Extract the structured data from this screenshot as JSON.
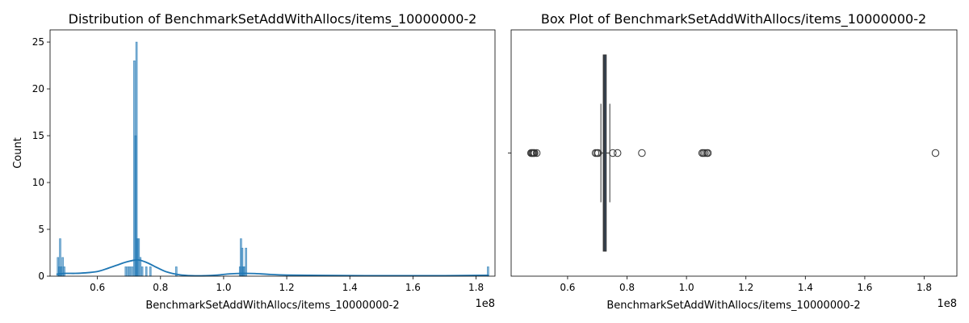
{
  "chart_data": [
    {
      "type": "bar",
      "subtype": "histogram-with-kde",
      "title": "Distribution of BenchmarkSetAddWithAllocs/items_10000000-2",
      "xlabel": "BenchmarkSetAddWithAllocs/items_10000000-2",
      "ylabel": "Count",
      "x_offset_label": "1e8",
      "xlim": [
        0.45,
        1.86
      ],
      "ylim": [
        0,
        26.3
      ],
      "x_ticks": [
        0.6,
        0.8,
        1.0,
        1.2,
        1.4,
        1.6,
        1.8
      ],
      "x_tick_labels": [
        "0.6",
        "0.8",
        "1.0",
        "1.2",
        "1.4",
        "1.6",
        "1.8"
      ],
      "y_ticks": [
        0,
        5,
        10,
        15,
        20,
        25
      ],
      "y_tick_labels": [
        "0",
        "5",
        "10",
        "15",
        "20",
        "25"
      ],
      "colors": {
        "bars": "#1f77b4",
        "kde": "#1f77b4"
      },
      "bins": [
        {
          "x": 0.475,
          "count": 2
        },
        {
          "x": 0.479,
          "count": 1
        },
        {
          "x": 0.482,
          "count": 4
        },
        {
          "x": 0.486,
          "count": 1
        },
        {
          "x": 0.49,
          "count": 2
        },
        {
          "x": 0.495,
          "count": 1
        },
        {
          "x": 0.69,
          "count": 1
        },
        {
          "x": 0.697,
          "count": 1
        },
        {
          "x": 0.703,
          "count": 1
        },
        {
          "x": 0.71,
          "count": 1
        },
        {
          "x": 0.717,
          "count": 23
        },
        {
          "x": 0.721,
          "count": 15
        },
        {
          "x": 0.724,
          "count": 25
        },
        {
          "x": 0.727,
          "count": 4
        },
        {
          "x": 0.731,
          "count": 4
        },
        {
          "x": 0.736,
          "count": 2
        },
        {
          "x": 0.742,
          "count": 1
        },
        {
          "x": 0.755,
          "count": 1
        },
        {
          "x": 0.768,
          "count": 1
        },
        {
          "x": 0.85,
          "count": 1
        },
        {
          "x": 1.052,
          "count": 1
        },
        {
          "x": 1.055,
          "count": 4
        },
        {
          "x": 1.059,
          "count": 3
        },
        {
          "x": 1.062,
          "count": 1
        },
        {
          "x": 1.066,
          "count": 1
        },
        {
          "x": 1.071,
          "count": 3
        },
        {
          "x": 1.838,
          "count": 1
        }
      ],
      "kde": {
        "x": [
          0.47,
          0.48,
          0.5,
          0.53,
          0.56,
          0.6,
          0.63,
          0.66,
          0.69,
          0.72,
          0.735,
          0.76,
          0.79,
          0.82,
          0.86,
          0.9,
          0.94,
          0.98,
          1.02,
          1.06,
          1.1,
          1.14,
          1.2,
          1.3,
          1.4,
          1.5,
          1.6,
          1.7,
          1.8,
          1.84
        ],
        "y": [
          0.2,
          0.25,
          0.3,
          0.3,
          0.35,
          0.5,
          0.8,
          1.15,
          1.5,
          1.72,
          1.7,
          1.4,
          0.9,
          0.45,
          0.15,
          0.05,
          0.05,
          0.12,
          0.25,
          0.3,
          0.28,
          0.2,
          0.12,
          0.08,
          0.06,
          0.05,
          0.05,
          0.05,
          0.08,
          0.1
        ]
      }
    },
    {
      "type": "box",
      "title": "Box Plot of BenchmarkSetAddWithAllocs/items_10000000-2",
      "xlabel": "BenchmarkSetAddWithAllocs/items_10000000-2",
      "x_offset_label": "1e8",
      "xlim": [
        0.41,
        1.91
      ],
      "x_ticks": [
        0.6,
        0.8,
        1.0,
        1.2,
        1.4,
        1.6,
        1.8
      ],
      "x_tick_labels": [
        "0.6",
        "0.8",
        "1.0",
        "1.2",
        "1.4",
        "1.6",
        "1.8"
      ],
      "box": {
        "whisker_low": 0.712,
        "q1": 0.72,
        "median": 0.723,
        "q3": 0.73,
        "whisker_high": 0.742
      },
      "colors": {
        "box_fill": "#3a4a5c",
        "lines": "#333333"
      },
      "outliers": [
        0.477,
        0.48,
        0.483,
        0.486,
        0.489,
        0.496,
        0.694,
        0.699,
        0.703,
        0.752,
        0.768,
        0.85,
        1.053,
        1.057,
        1.062,
        1.068,
        1.072,
        1.838
      ]
    }
  ]
}
